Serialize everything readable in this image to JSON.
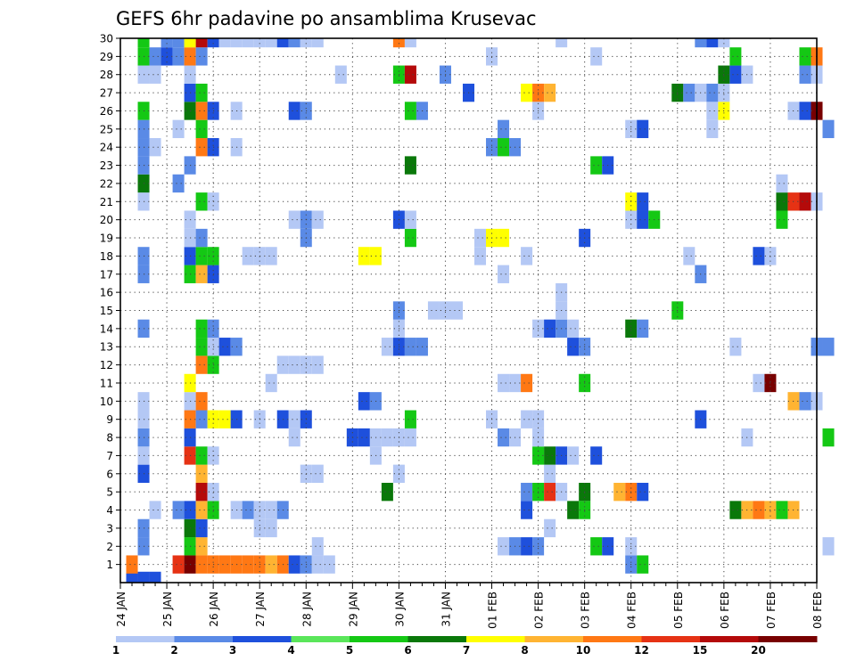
{
  "chart_data": {
    "type": "heatmap",
    "title": "GEFS 6hr padavine po ansamblima Krusevac",
    "x_ticks": [
      "24 JAN",
      "25 JAN",
      "26 JAN",
      "27 JAN",
      "28 JAN",
      "29 JAN",
      "30 JAN",
      "31 JAN",
      "01 FEB",
      "02 FEB",
      "03 FEB",
      "04 FEB",
      "05 FEB",
      "06 FEB",
      "07 FEB",
      "08 FEB"
    ],
    "y_ticks": [
      "1",
      "2",
      "3",
      "4",
      "5",
      "6",
      "7",
      "8",
      "9",
      "10",
      "11",
      "12",
      "13",
      "14",
      "15",
      "16",
      "17",
      "18",
      "19",
      "20",
      "21",
      "22",
      "23",
      "24",
      "25",
      "26",
      "27",
      "28",
      "29",
      "30"
    ],
    "x_range": [
      "24 JAN 00Z",
      "08 FEB 00Z"
    ],
    "y_range": [
      0,
      30
    ],
    "x_step": "6hr",
    "grid": true,
    "colorbar": {
      "placement": "bottom",
      "labels": [
        "1",
        "2",
        "3",
        "4",
        "5",
        "6",
        "7",
        "8",
        "10",
        "12",
        "15",
        "20"
      ],
      "colors": [
        "#b4c8f5",
        "#5a8ae6",
        "#1e50dc",
        "#5ae65a",
        "#14c814",
        "#0a780a",
        "#ffff00",
        "#ffb432",
        "#ff7814",
        "#e63214",
        "#b40a0a",
        "#780000"
      ]
    },
    "cells": [
      [
        1,
        0.1,
        3.5
      ],
      [
        2,
        0.1,
        3.5
      ],
      [
        3,
        0.1,
        3.5
      ],
      [
        1,
        1,
        10
      ],
      [
        5,
        1,
        13
      ],
      [
        6,
        1,
        20
      ],
      [
        7,
        1,
        10
      ],
      [
        8,
        1,
        10
      ],
      [
        9,
        1,
        10
      ],
      [
        10,
        1,
        10
      ],
      [
        11,
        1,
        10
      ],
      [
        12,
        1,
        10
      ],
      [
        13,
        1,
        8
      ],
      [
        14,
        1,
        10
      ],
      [
        15,
        1,
        3
      ],
      [
        16,
        1,
        2
      ],
      [
        17,
        1,
        1.5
      ],
      [
        18,
        1,
        1.5
      ],
      [
        44,
        1,
        2
      ],
      [
        45,
        1,
        5
      ],
      [
        2,
        2,
        2
      ],
      [
        6,
        2,
        5
      ],
      [
        7,
        2,
        8
      ],
      [
        17,
        2,
        1.5
      ],
      [
        33,
        2,
        1.5
      ],
      [
        34,
        2,
        2
      ],
      [
        35,
        2,
        3
      ],
      [
        36,
        2,
        2
      ],
      [
        41,
        2,
        5
      ],
      [
        42,
        2,
        3
      ],
      [
        44,
        2,
        1.5
      ],
      [
        61,
        2,
        1.5
      ],
      [
        2,
        3,
        2
      ],
      [
        6,
        3,
        6
      ],
      [
        7,
        3,
        3
      ],
      [
        12,
        3,
        1.5
      ],
      [
        13,
        3,
        1.5
      ],
      [
        37,
        3,
        1.5
      ],
      [
        3,
        4,
        1.5
      ],
      [
        5,
        4,
        2
      ],
      [
        6,
        4,
        3
      ],
      [
        7,
        4,
        8
      ],
      [
        8,
        4,
        5
      ],
      [
        10,
        4,
        1.5
      ],
      [
        11,
        4,
        2
      ],
      [
        12,
        4,
        1.5
      ],
      [
        13,
        4,
        1.5
      ],
      [
        14,
        4,
        2
      ],
      [
        35,
        4,
        3
      ],
      [
        39,
        4,
        6
      ],
      [
        40,
        4,
        5
      ],
      [
        53,
        4,
        6
      ],
      [
        54,
        4,
        8
      ],
      [
        55,
        4,
        10
      ],
      [
        56,
        4,
        8
      ],
      [
        57,
        4,
        5
      ],
      [
        58,
        4,
        8
      ],
      [
        7,
        5,
        15
      ],
      [
        8,
        5,
        1.5
      ],
      [
        23,
        5,
        6
      ],
      [
        35,
        5,
        2
      ],
      [
        36,
        5,
        5
      ],
      [
        37,
        5,
        12
      ],
      [
        38,
        5,
        1.5
      ],
      [
        40,
        5,
        6
      ],
      [
        43,
        5,
        8
      ],
      [
        44,
        5,
        10
      ],
      [
        45,
        5,
        3
      ],
      [
        2,
        6,
        3
      ],
      [
        7,
        6,
        8
      ],
      [
        16,
        6,
        1.5
      ],
      [
        17,
        6,
        1.5
      ],
      [
        24,
        6,
        1.5
      ],
      [
        37,
        6,
        1.5
      ],
      [
        2,
        7,
        1.5
      ],
      [
        6,
        7,
        12
      ],
      [
        7,
        7,
        5
      ],
      [
        8,
        7,
        1.5
      ],
      [
        22,
        7,
        1.5
      ],
      [
        36,
        7,
        5
      ],
      [
        37,
        7,
        6
      ],
      [
        38,
        7,
        3
      ],
      [
        39,
        7,
        1.5
      ],
      [
        41,
        7,
        3
      ],
      [
        2,
        8,
        2
      ],
      [
        6,
        8,
        3
      ],
      [
        15,
        8,
        1.5
      ],
      [
        20,
        8,
        3
      ],
      [
        21,
        8,
        3
      ],
      [
        22,
        8,
        1.5
      ],
      [
        23,
        8,
        1.5
      ],
      [
        24,
        8,
        1.5
      ],
      [
        25,
        8,
        1.5
      ],
      [
        33,
        8,
        2
      ],
      [
        34,
        8,
        1.5
      ],
      [
        36,
        8,
        1.5
      ],
      [
        54,
        8,
        1.5
      ],
      [
        61,
        8,
        5
      ],
      [
        2,
        9,
        1.5
      ],
      [
        6,
        9,
        10
      ],
      [
        7,
        9,
        2
      ],
      [
        8,
        9,
        7
      ],
      [
        9,
        9,
        7
      ],
      [
        10,
        9,
        3
      ],
      [
        12,
        9,
        1.5
      ],
      [
        14,
        9,
        3
      ],
      [
        15,
        9,
        1.5
      ],
      [
        16,
        9,
        3
      ],
      [
        25,
        9,
        5
      ],
      [
        32,
        9,
        1.5
      ],
      [
        35,
        9,
        1.5
      ],
      [
        36,
        9,
        1.5
      ],
      [
        50,
        9,
        3
      ],
      [
        2,
        10,
        1.5
      ],
      [
        6,
        10,
        1.5
      ],
      [
        7,
        10,
        10
      ],
      [
        21,
        10,
        3
      ],
      [
        22,
        10,
        2
      ],
      [
        58,
        10,
        8
      ],
      [
        59,
        10,
        2
      ],
      [
        60,
        10,
        1.5
      ],
      [
        6,
        11,
        7
      ],
      [
        13,
        11,
        1.5
      ],
      [
        33,
        11,
        1.5
      ],
      [
        34,
        11,
        1.5
      ],
      [
        35,
        11,
        10
      ],
      [
        40,
        11,
        5
      ],
      [
        55,
        11,
        1.5
      ],
      [
        56,
        11,
        20
      ],
      [
        7,
        12,
        10
      ],
      [
        8,
        12,
        5
      ],
      [
        14,
        12,
        1.5
      ],
      [
        15,
        12,
        1.5
      ],
      [
        16,
        12,
        1.5
      ],
      [
        17,
        12,
        1.5
      ],
      [
        7,
        13,
        5
      ],
      [
        8,
        13,
        1.5
      ],
      [
        9,
        13,
        3
      ],
      [
        10,
        13,
        2
      ],
      [
        23,
        13,
        1.5
      ],
      [
        24,
        13,
        3
      ],
      [
        25,
        13,
        2
      ],
      [
        26,
        13,
        2
      ],
      [
        39,
        13,
        3
      ],
      [
        40,
        13,
        2
      ],
      [
        53,
        13,
        1.5
      ],
      [
        60,
        13,
        2
      ],
      [
        61,
        13,
        2
      ],
      [
        2,
        14,
        2
      ],
      [
        7,
        14,
        5
      ],
      [
        8,
        14,
        2
      ],
      [
        24,
        14,
        1.5
      ],
      [
        36,
        14,
        1.5
      ],
      [
        37,
        14,
        3
      ],
      [
        38,
        14,
        2
      ],
      [
        39,
        14,
        1.5
      ],
      [
        44,
        14,
        6
      ],
      [
        45,
        14,
        2
      ],
      [
        24,
        15,
        2
      ],
      [
        27,
        15,
        1.5
      ],
      [
        28,
        15,
        1.5
      ],
      [
        29,
        15,
        1.5
      ],
      [
        38,
        15,
        1.5
      ],
      [
        48,
        15,
        5
      ],
      [
        38,
        16,
        1.5
      ],
      [
        2,
        17,
        2
      ],
      [
        6,
        17,
        5
      ],
      [
        7,
        17,
        8
      ],
      [
        8,
        17,
        3
      ],
      [
        33,
        17,
        1.5
      ],
      [
        50,
        17,
        2
      ],
      [
        2,
        18,
        2
      ],
      [
        6,
        18,
        3
      ],
      [
        7,
        18,
        5
      ],
      [
        8,
        18,
        5
      ],
      [
        11,
        18,
        1.5
      ],
      [
        12,
        18,
        1.5
      ],
      [
        13,
        18,
        1.5
      ],
      [
        21,
        18,
        7
      ],
      [
        22,
        18,
        7
      ],
      [
        31,
        18,
        1.5
      ],
      [
        35,
        18,
        1.5
      ],
      [
        49,
        18,
        1.5
      ],
      [
        55,
        18,
        3
      ],
      [
        56,
        18,
        1.5
      ],
      [
        6,
        19,
        1.5
      ],
      [
        7,
        19,
        2
      ],
      [
        16,
        19,
        2
      ],
      [
        25,
        19,
        5
      ],
      [
        31,
        19,
        1.5
      ],
      [
        32,
        19,
        7
      ],
      [
        33,
        19,
        7
      ],
      [
        40,
        19,
        3
      ],
      [
        6,
        20,
        1.5
      ],
      [
        15,
        20,
        1.5
      ],
      [
        16,
        20,
        2
      ],
      [
        17,
        20,
        1.5
      ],
      [
        24,
        20,
        3
      ],
      [
        25,
        20,
        1.5
      ],
      [
        44,
        20,
        1.5
      ],
      [
        45,
        20,
        3
      ],
      [
        46,
        20,
        5
      ],
      [
        57,
        20,
        5
      ],
      [
        2,
        21,
        1.5
      ],
      [
        7,
        21,
        5
      ],
      [
        8,
        21,
        1.5
      ],
      [
        44,
        21,
        7
      ],
      [
        45,
        21,
        3
      ],
      [
        57,
        21,
        6
      ],
      [
        58,
        21,
        12
      ],
      [
        59,
        21,
        15
      ],
      [
        60,
        21,
        1.5
      ],
      [
        2,
        22,
        6
      ],
      [
        5,
        22,
        2
      ],
      [
        57,
        22,
        1.5
      ],
      [
        2,
        23,
        2
      ],
      [
        6,
        23,
        2
      ],
      [
        25,
        23,
        6
      ],
      [
        41,
        23,
        5
      ],
      [
        42,
        23,
        3
      ],
      [
        2,
        24,
        2
      ],
      [
        3,
        24,
        1.5
      ],
      [
        7,
        24,
        10
      ],
      [
        8,
        24,
        3
      ],
      [
        10,
        24,
        1.5
      ],
      [
        32,
        24,
        2
      ],
      [
        33,
        24,
        5
      ],
      [
        34,
        24,
        2
      ],
      [
        2,
        25,
        2
      ],
      [
        5,
        25,
        1.5
      ],
      [
        7,
        25,
        5
      ],
      [
        33,
        25,
        2
      ],
      [
        44,
        25,
        1.5
      ],
      [
        45,
        25,
        3
      ],
      [
        51,
        25,
        1.5
      ],
      [
        61,
        25,
        2
      ],
      [
        2,
        26,
        5
      ],
      [
        6,
        26,
        6
      ],
      [
        7,
        26,
        10
      ],
      [
        8,
        26,
        3
      ],
      [
        10,
        26,
        1.5
      ],
      [
        15,
        26,
        3
      ],
      [
        16,
        26,
        2
      ],
      [
        25,
        26,
        5
      ],
      [
        26,
        26,
        2
      ],
      [
        36,
        26,
        1.5
      ],
      [
        51,
        26,
        1.5
      ],
      [
        52,
        26,
        7
      ],
      [
        58,
        26,
        1.5
      ],
      [
        59,
        26,
        3
      ],
      [
        60,
        26,
        20
      ],
      [
        6,
        27,
        3
      ],
      [
        7,
        27,
        5
      ],
      [
        30,
        27,
        3
      ],
      [
        35,
        27,
        7
      ],
      [
        36,
        27,
        10
      ],
      [
        37,
        27,
        8
      ],
      [
        48,
        27,
        6
      ],
      [
        49,
        27,
        2
      ],
      [
        50,
        27,
        1.5
      ],
      [
        51,
        27,
        2
      ],
      [
        52,
        27,
        1.5
      ],
      [
        2,
        28,
        1.5
      ],
      [
        3,
        28,
        1.5
      ],
      [
        6,
        28,
        1.5
      ],
      [
        19,
        28,
        1.5
      ],
      [
        24,
        28,
        5
      ],
      [
        25,
        28,
        15
      ],
      [
        28,
        28,
        2
      ],
      [
        52,
        28,
        6
      ],
      [
        53,
        28,
        3
      ],
      [
        54,
        28,
        1.5
      ],
      [
        59,
        28,
        2
      ],
      [
        60,
        28,
        1.5
      ],
      [
        2,
        29,
        5
      ],
      [
        3,
        29,
        2
      ],
      [
        4,
        29,
        3
      ],
      [
        5,
        29,
        2
      ],
      [
        6,
        29,
        10
      ],
      [
        7,
        29,
        2
      ],
      [
        32,
        29,
        1.5
      ],
      [
        41,
        29,
        1.5
      ],
      [
        53,
        29,
        5
      ],
      [
        59,
        29,
        5
      ],
      [
        60,
        29,
        10
      ],
      [
        2,
        30,
        5
      ],
      [
        4,
        30,
        2
      ],
      [
        5,
        30,
        2
      ],
      [
        6,
        30,
        7
      ],
      [
        7,
        30,
        15
      ],
      [
        8,
        30,
        3
      ],
      [
        9,
        30,
        1.5
      ],
      [
        10,
        30,
        1.5
      ],
      [
        11,
        30,
        1.5
      ],
      [
        12,
        30,
        1.5
      ],
      [
        13,
        30,
        1.5
      ],
      [
        14,
        30,
        3
      ],
      [
        15,
        30,
        2
      ],
      [
        16,
        30,
        1.5
      ],
      [
        17,
        30,
        1.5
      ],
      [
        24,
        30,
        10
      ],
      [
        25,
        30,
        1.5
      ],
      [
        38,
        30,
        1.5
      ],
      [
        50,
        30,
        2
      ],
      [
        51,
        30,
        3
      ],
      [
        52,
        30,
        1.5
      ]
    ]
  }
}
